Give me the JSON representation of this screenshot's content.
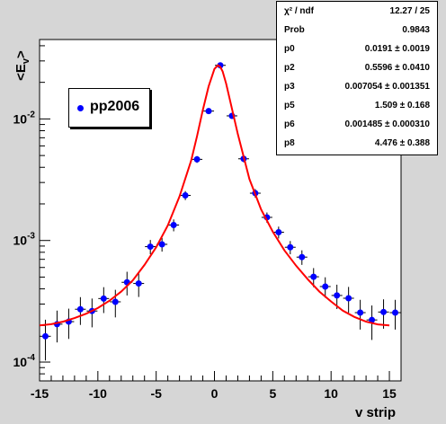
{
  "chart_data": {
    "type": "scatter",
    "title": "",
    "xlabel": "v strip",
    "ylabel": "<E_v>",
    "xlim": [
      -15,
      16
    ],
    "ylim": [
      7e-05,
      0.045
    ],
    "yscale": "log",
    "xticks": [
      -15,
      -10,
      -5,
      0,
      5,
      10,
      15
    ],
    "xtick_labels": [
      "-15",
      "-10",
      "-5",
      "0",
      "5",
      "10",
      "15"
    ],
    "yticks": [
      0.0001,
      0.001,
      0.01
    ],
    "ytick_labels": [
      "10^-4",
      "10^-3",
      "10^-2"
    ],
    "grid": false,
    "legend": {
      "placement": "upper-left",
      "entries": [
        "pp2006"
      ]
    },
    "series": [
      {
        "name": "pp2006",
        "color": "#0000ff",
        "x": [
          -14.5,
          -13.5,
          -12.5,
          -11.5,
          -10.5,
          -9.5,
          -8.5,
          -7.5,
          -6.5,
          -5.5,
          -4.5,
          -3.5,
          -2.5,
          -1.5,
          -0.5,
          0.5,
          1.5,
          2.5,
          3.5,
          4.5,
          5.5,
          6.5,
          7.5,
          8.5,
          9.5,
          10.5,
          11.5,
          12.5,
          13.5,
          14.5,
          15.5
        ],
        "y": [
          0.000163,
          0.000205,
          0.000215,
          0.000272,
          0.000263,
          0.000333,
          0.000313,
          0.000453,
          0.000443,
          0.00089,
          0.00093,
          0.00134,
          0.00235,
          0.00465,
          0.0116,
          0.0276,
          0.0106,
          0.0047,
          0.00245,
          0.00155,
          0.00117,
          0.00088,
          0.00073,
          0.000503,
          0.000418,
          0.000353,
          0.000335,
          0.000255,
          0.000222,
          0.000258,
          0.000255
        ],
        "yerr": [
          6e-05,
          6e-05,
          6e-05,
          7e-05,
          7e-05,
          8e-05,
          8e-05,
          0.0001,
          0.0001,
          0.00012,
          0.00012,
          0.00015,
          0.0002,
          0.0003,
          0.0005,
          0.0008,
          0.0005,
          0.0003,
          0.0002,
          0.00015,
          0.00013,
          0.00011,
          0.0001,
          9e-05,
          8e-05,
          8e-05,
          8e-05,
          7e-05,
          7e-05,
          7e-05,
          7e-05
        ]
      }
    ],
    "fit": {
      "color": "#ff0000",
      "x": [
        -15,
        -14,
        -13,
        -12,
        -11,
        -10,
        -9,
        -8,
        -7,
        -6,
        -5,
        -4,
        -3,
        -2,
        -1.5,
        -1,
        -0.5,
        0,
        0.3,
        0.5,
        0.7,
        1,
        1.5,
        2,
        3,
        4,
        5,
        6,
        7,
        8,
        9,
        10,
        11,
        12,
        13,
        14,
        15
      ],
      "y": [
        0.0002,
        0.000205,
        0.000215,
        0.00023,
        0.00025,
        0.000278,
        0.00032,
        0.00038,
        0.00047,
        0.00063,
        0.00088,
        0.00133,
        0.0023,
        0.00455,
        0.0072,
        0.0118,
        0.0185,
        0.0258,
        0.0276,
        0.0268,
        0.0246,
        0.0195,
        0.0121,
        0.0075,
        0.0032,
        0.0018,
        0.00118,
        0.00083,
        0.00062,
        0.00048,
        0.00038,
        0.000315,
        0.000265,
        0.000235,
        0.000215,
        0.000204,
        0.0002
      ]
    }
  },
  "stats": [
    {
      "name": "χ² / ndf",
      "value": "12.27 / 25"
    },
    {
      "name": "Prob",
      "value": "0.9843"
    },
    {
      "name": "p0",
      "value": "0.0191 ± 0.0019"
    },
    {
      "name": "p2",
      "value": "0.5596 ± 0.0410"
    },
    {
      "name": "p3",
      "value": "0.007054 ± 0.001351"
    },
    {
      "name": "p5",
      "value": "1.509 ± 0.168"
    },
    {
      "name": "p6",
      "value": "0.001485 ± 0.000310"
    },
    {
      "name": "p8",
      "value": "4.476 ± 0.388"
    }
  ],
  "legend_label": "pp2006"
}
